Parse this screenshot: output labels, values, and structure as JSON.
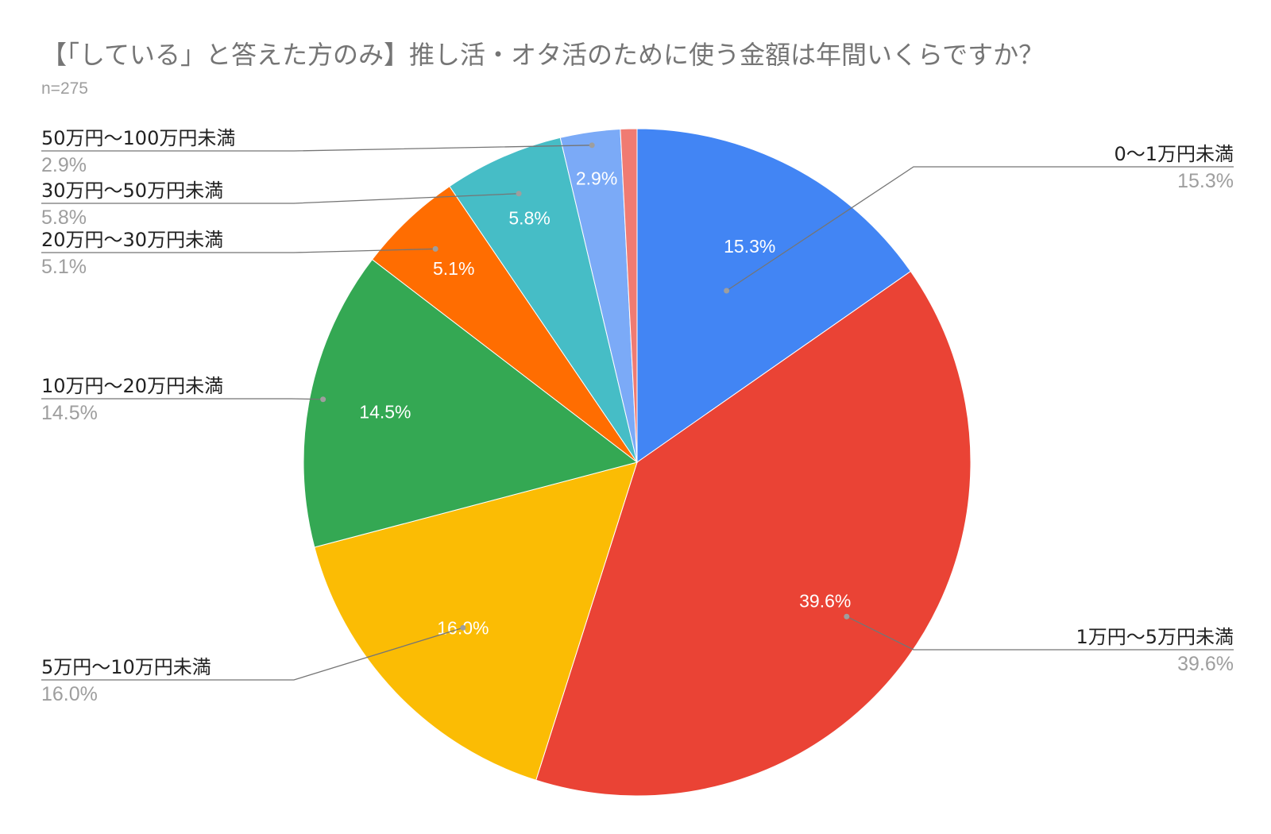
{
  "chart_data": {
    "type": "pie",
    "title": "【「している」と答えた方のみ】推し活・オタ活のために使う金額は年間いくらですか？",
    "subtitle": "n=275",
    "slices": [
      {
        "label": "0〜1万円未満",
        "value": 15.3,
        "display": "15.3%",
        "color": "#4285f4",
        "inside_label": "15.3%"
      },
      {
        "label": "1万円〜5万円未満",
        "value": 39.6,
        "display": "39.6%",
        "color": "#ea4335",
        "inside_label": "39.6%"
      },
      {
        "label": "5万円〜10万円未満",
        "value": 16.0,
        "display": "16.0%",
        "color": "#fbbc04",
        "inside_label": "16.0%"
      },
      {
        "label": "10万円〜20万円未満",
        "value": 14.5,
        "display": "14.5%",
        "color": "#34a853",
        "inside_label": "14.5%"
      },
      {
        "label": "20万円〜30万円未満",
        "value": 5.1,
        "display": "5.1%",
        "color": "#ff6d01",
        "inside_label": "5.1%"
      },
      {
        "label": "30万円〜50万円未満",
        "value": 5.8,
        "display": "5.8%",
        "color": "#46bdc6",
        "inside_label": "5.8%"
      },
      {
        "label": "50万円〜100万円未満",
        "value": 2.9,
        "display": "2.9%",
        "color": "#7baaf7",
        "inside_label": "2.9%"
      },
      {
        "label": "",
        "value": 0.8,
        "display": "",
        "color": "#f07b72",
        "inside_label": ""
      }
    ]
  }
}
